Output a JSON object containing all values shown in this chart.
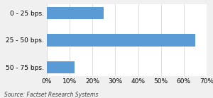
{
  "categories": [
    "0 - 25 bps.",
    "25 - 50 bps.",
    "50 - 75 bps."
  ],
  "values": [
    25,
    65,
    12
  ],
  "bar_color": "#5b9bd5",
  "xlim": [
    0,
    70
  ],
  "xticks": [
    0,
    10,
    20,
    30,
    40,
    50,
    60,
    70
  ],
  "source_text": "Source: Factset Research Systems",
  "background_color": "#f0f0f0",
  "axes_background": "#ffffff",
  "tick_label_fontsize": 6.5,
  "source_fontsize": 5.5,
  "bar_height": 0.45
}
